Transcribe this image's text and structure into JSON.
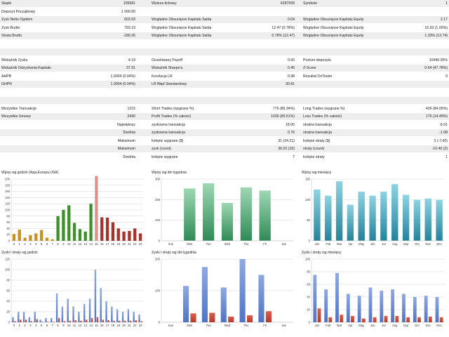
{
  "report": {
    "rows": [
      {
        "shade": true,
        "cells": [
          {
            "label": "Słupki",
            "value": "105681"
          },
          {
            "label": "Wykres tickowy",
            "value": "6287939"
          },
          {
            "label": "Symbole",
            "value": "1"
          }
        ]
      },
      {
        "shade": false,
        "cells": [
          {
            "label": "Depozyt Początkowy",
            "value": "1 000.00"
          },
          {
            "label": "",
            "value": ""
          },
          {
            "label": "",
            "value": ""
          }
        ]
      },
      {
        "shade": true,
        "cells": [
          {
            "label": "Zysk Netto Ogółem",
            "value": "603.93"
          },
          {
            "label": "Względne Obsunięcie Kapitału Salda",
            "value": "0.04"
          },
          {
            "label": "Względne Obsunięcie Kapitału Equity",
            "value": "2.17"
          }
        ]
      },
      {
        "shade": false,
        "cells": [
          {
            "label": "Zysk Brutto",
            "value": "793.19"
          },
          {
            "label": "Względne Obsunięcie Kapitału Salda",
            "value": "12.47 (0.78%)"
          },
          {
            "label": "Względne Obsunięcie Kapitału Equity",
            "value": "15.93 (1.00%)"
          }
        ]
      },
      {
        "shade": true,
        "cells": [
          {
            "label": "Strata Brutto",
            "value": "-189.26"
          },
          {
            "label": "Względne Obsunięcie Kapitału Salda",
            "value": "0.78% (12.47)"
          },
          {
            "label": "Względne Obsunięcie Kapitału Equity",
            "value": "1.33% (13.74)"
          }
        ]
      },
      {
        "shade": false,
        "cells": [
          {
            "label": "",
            "value": ""
          },
          {
            "label": "",
            "value": ""
          },
          {
            "label": "",
            "value": ""
          }
        ]
      },
      {
        "shade": true,
        "cells": [
          {
            "label": "",
            "value": ""
          },
          {
            "label": "",
            "value": ""
          },
          {
            "label": "",
            "value": ""
          }
        ]
      },
      {
        "shade": false,
        "cells": [
          {
            "label": "Wskaźnik Zysku",
            "value": "4.19"
          },
          {
            "label": "Oczekiwany Payoff",
            "value": "0.50"
          },
          {
            "label": "Poziom depozytu",
            "value": "10440.05%"
          }
        ]
      },
      {
        "shade": true,
        "cells": [
          {
            "label": "Wskaźnik Odzyskania Kapitału",
            "value": "37.91"
          },
          {
            "label": "Wskaźnik Sharpe'a",
            "value": "0.45"
          },
          {
            "label": "Z-Score",
            "value": "0.64 (47.78%)"
          }
        ]
      },
      {
        "shade": false,
        "cells": [
          {
            "label": "AHPR",
            "value": "1.0004 (0.04%)"
          },
          {
            "label": "Korelacja LR",
            "value": "0.98"
          },
          {
            "label": "Rezultat OnTester",
            "value": "0"
          }
        ]
      },
      {
        "shade": true,
        "cells": [
          {
            "label": "GHPR",
            "value": "1.0004 (0.04%)"
          },
          {
            "label": "LR Błąd Standardowy",
            "value": "30.81"
          },
          {
            "label": "",
            "value": ""
          }
        ]
      },
      {
        "shade": false,
        "cells": [
          {
            "label": "",
            "value": ""
          },
          {
            "label": "",
            "value": ""
          },
          {
            "label": "",
            "value": ""
          }
        ]
      },
      {
        "shade": true,
        "cells": [
          {
            "label": "",
            "value": ""
          },
          {
            "label": "",
            "value": ""
          },
          {
            "label": "",
            "value": ""
          }
        ]
      },
      {
        "shade": false,
        "cells": [
          {
            "label": "Wszystkie Transakcje",
            "value": "1215"
          },
          {
            "label": "Short Trades (wygrane %)",
            "value": "776 (86.34%)"
          },
          {
            "label": "Long Trades (wygrane %)",
            "value": "439 (84.05%)"
          }
        ]
      },
      {
        "shade": true,
        "cells": [
          {
            "label": "Wszystkie Umowy",
            "value": "2430"
          },
          {
            "label": "Profit Trades (% całości)",
            "value": "1039 (85.51%)"
          },
          {
            "label": "Loss Trades (% całości)",
            "value": "176 (14.49%)"
          }
        ]
      },
      {
        "shade": false,
        "cells": [
          {
            "label": "Największy",
            "labelRight": true,
            "value": ""
          },
          {
            "label": "zyskowna transakcja",
            "value": "18.00"
          },
          {
            "label": "stratna transakcja",
            "value": "-6.01"
          }
        ]
      },
      {
        "shade": true,
        "cells": [
          {
            "label": "Średnia",
            "labelRight": true,
            "value": ""
          },
          {
            "label": "zyskowna transakcja",
            "value": "0.76"
          },
          {
            "label": "stratna transakcja",
            "value": "-1.08"
          }
        ]
      },
      {
        "shade": false,
        "cells": [
          {
            "label": "Maksimum",
            "labelRight": true,
            "value": ""
          },
          {
            "label": "kolejne wygrane ($)",
            "value": "31 (24.21)"
          },
          {
            "label": "kolejne straty ($)",
            "value": "3 (-7.60)"
          }
        ]
      },
      {
        "shade": true,
        "cells": [
          {
            "label": "Maksimum",
            "labelRight": true,
            "value": ""
          },
          {
            "label": "zysk (count)",
            "value": "36.02 (16)"
          },
          {
            "label": "straty (count)",
            "value": "-10.46 (2)"
          }
        ]
      },
      {
        "shade": false,
        "cells": [
          {
            "label": "Średnia",
            "labelRight": true,
            "value": ""
          },
          {
            "label": "kolejne wygrane",
            "value": "7"
          },
          {
            "label": "kolejne straty",
            "value": "1"
          }
        ]
      }
    ]
  },
  "chart_data": [
    {
      "id": "entries-hours",
      "type": "bar",
      "title": "Wpisy wg godzin (Azja,Europa,USA)",
      "categories": [
        "0",
        "1",
        "2",
        "3",
        "4",
        "5",
        "6",
        "7",
        "8",
        "9",
        "10",
        "11",
        "12",
        "13",
        "14",
        "15",
        "16",
        "17",
        "18",
        "19",
        "20",
        "21",
        "22",
        "23"
      ],
      "series": [
        {
          "values": [
            22,
            36,
            10,
            18,
            24,
            35,
            10,
            5,
            80,
            100,
            115,
            58,
            38,
            30,
            120,
            210,
            76,
            75,
            60,
            40,
            30,
            32,
            40,
            24
          ]
        }
      ],
      "bar_colors": [
        "#c9921e",
        "#c9921e",
        "#c9921e",
        "#c9921e",
        "#c9921e",
        "#c9921e",
        "#c9921e",
        "#c9921e",
        "#3f8f2d",
        "#3f8f2d",
        "#3f8f2d",
        "#3f8f2d",
        "#3f8f2d",
        "#3f8f2d",
        "#3f8f2d",
        "#e0928a",
        "#a5332b",
        "#a5332b",
        "#a5332b",
        "#a5332b",
        "#a5332b",
        "#a5332b",
        "#a5332b",
        "#a5332b"
      ],
      "ylim": [
        0,
        200
      ],
      "yticks": [
        "0",
        "20",
        "40",
        "60",
        "80",
        "100",
        "120",
        "140",
        "160",
        "180",
        "200"
      ],
      "grid": true
    },
    {
      "id": "entries-weekdays",
      "type": "bar",
      "title": "Wpisy wg dni tygodnia",
      "categories": [
        "Sun",
        "Mon",
        "Tue",
        "Wed",
        "Thu",
        "Fri",
        "Sat"
      ],
      "series": [
        {
          "values": [
            0,
            255,
            280,
            185,
            260,
            245,
            0
          ]
        }
      ],
      "bar_style": "green-gradient",
      "ylim": [
        0,
        300
      ],
      "yticks": [
        "0",
        "100",
        "200",
        "300"
      ],
      "grid": true
    },
    {
      "id": "entries-months",
      "type": "bar",
      "title": "Wpisy wg miesięcy",
      "categories": [
        "Jan",
        "Feb",
        "Mar",
        "Apr",
        "May",
        "Jun",
        "Jul",
        "Aug",
        "Sep",
        "Oct",
        "Nov",
        "Dec"
      ],
      "series": [
        {
          "values": [
            125,
            110,
            145,
            88,
            120,
            110,
            120,
            138,
            112,
            100,
            103,
            100
          ]
        }
      ],
      "bar_style": "teal-gradient",
      "ylim": [
        0,
        150
      ],
      "yticks": [
        "0",
        "50",
        "100",
        "150"
      ],
      "grid": true
    },
    {
      "id": "pl-hours",
      "type": "bar",
      "title": "Zyski i straty wg godzin",
      "categories": [
        "0",
        "1",
        "2",
        "3",
        "4",
        "5",
        "6",
        "7",
        "8",
        "9",
        "10",
        "11",
        "12",
        "13",
        "14",
        "15",
        "16",
        "17",
        "18",
        "19",
        "20",
        "21",
        "22",
        "23"
      ],
      "series": [
        {
          "name": "profit",
          "values": [
            10,
            20,
            20,
            10,
            20,
            5,
            8,
            8,
            55,
            30,
            45,
            30,
            20,
            35,
            45,
            100,
            65,
            40,
            30,
            25,
            20,
            25,
            20,
            15
          ]
        },
        {
          "name": "loss",
          "values": [
            2,
            5,
            5,
            2,
            6,
            1,
            1,
            1,
            8,
            2,
            3,
            4,
            3,
            5,
            8,
            10,
            5,
            4,
            3,
            3,
            3,
            3,
            4,
            2
          ]
        }
      ],
      "series_colors": [
        "#4f73c5",
        "#b43a2c"
      ],
      "ylim": [
        0,
        120
      ],
      "yticks": [
        "0",
        "20",
        "40",
        "60",
        "80",
        "100",
        "120"
      ],
      "grid": true
    },
    {
      "id": "pl-weekdays",
      "type": "bar",
      "title": "Zyski i straty wg dni tygodnia",
      "categories": [
        "Sun",
        "Mon",
        "Tue",
        "Wed",
        "Thu",
        "Fri",
        "Sat"
      ],
      "series": [
        {
          "name": "profit",
          "values": [
            0,
            115,
            175,
            110,
            200,
            150,
            0
          ]
        },
        {
          "name": "loss",
          "values": [
            0,
            28,
            30,
            18,
            22,
            35,
            0
          ]
        }
      ],
      "series_colors": [
        "#4f73c5",
        "#b43a2c"
      ],
      "ylim": [
        0,
        200
      ],
      "yticks": [
        "0",
        "100",
        "200"
      ],
      "grid": true
    },
    {
      "id": "pl-months",
      "type": "bar",
      "title": "Zyski i straty wg miesięcy",
      "categories": [
        "Jan",
        "Feb",
        "Mar",
        "Apr",
        "May",
        "Jun",
        "Jul",
        "Aug",
        "Sep",
        "Oct",
        "Nov",
        "Dec"
      ],
      "series": [
        {
          "name": "profit",
          "values": [
            75,
            52,
            78,
            45,
            42,
            55,
            50,
            52,
            45,
            40,
            42,
            40
          ]
        },
        {
          "name": "loss",
          "values": [
            22,
            8,
            12,
            10,
            6,
            8,
            10,
            10,
            8,
            8,
            9,
            8
          ]
        }
      ],
      "series_colors": [
        "#4f73c5",
        "#b43a2c"
      ],
      "ylim": [
        0,
        100
      ],
      "yticks": [
        "0",
        "20",
        "40",
        "60",
        "80",
        "100"
      ],
      "grid": true
    }
  ]
}
